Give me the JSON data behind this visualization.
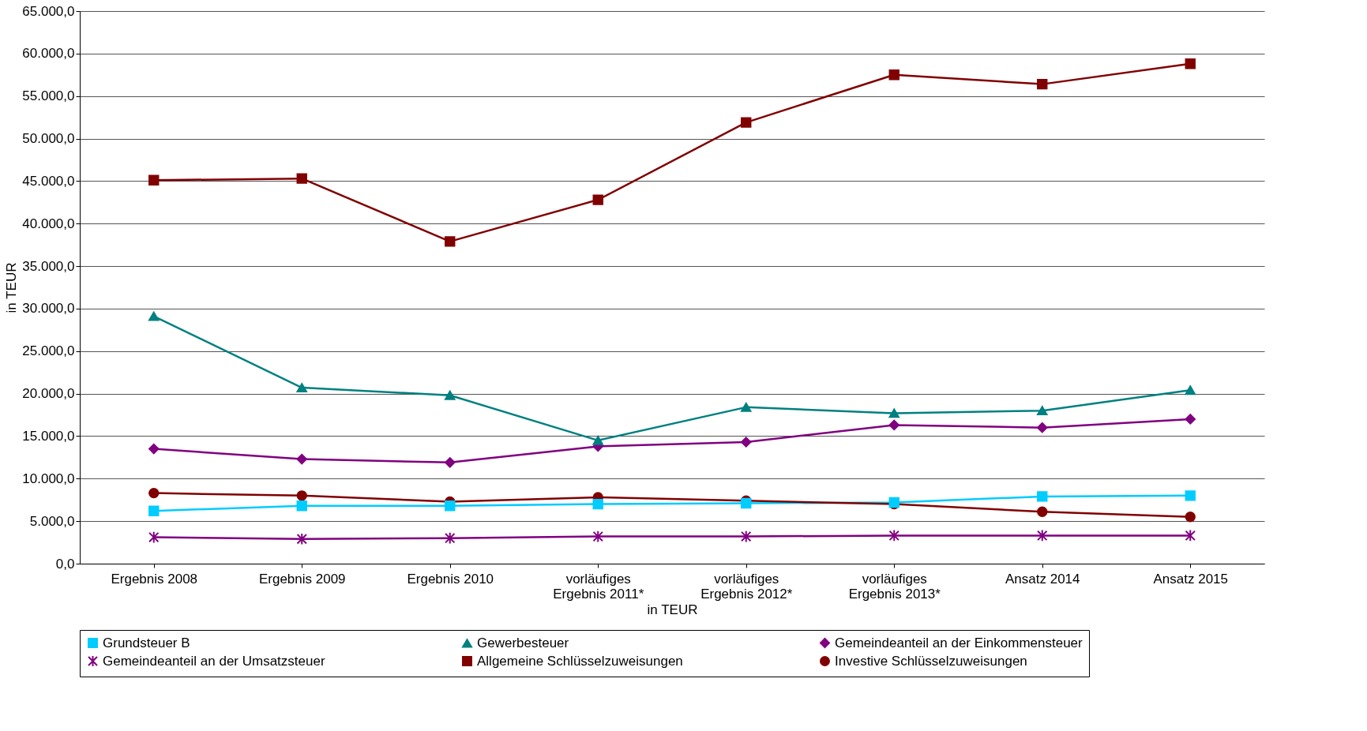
{
  "chart_data": {
    "type": "line",
    "xlabel": "in TEUR",
    "ylabel": "in TEUR",
    "categories": [
      "Ergebnis 2008",
      "Ergebnis 2009",
      "Ergebnis 2010",
      "vorläufiges\nErgebnis 2011*",
      "vorläufiges\nErgebnis 2012*",
      "vorläufiges\nErgebnis 2013*",
      "Ansatz 2014",
      "Ansatz 2015"
    ],
    "series": [
      {
        "name": "Grundsteuer B",
        "color": "#00ccff",
        "marker": "square",
        "values": [
          6200,
          6800,
          6800,
          7000,
          7100,
          7200,
          7900,
          8000
        ]
      },
      {
        "name": "Gewerbesteuer",
        "color": "#008080",
        "marker": "triangle",
        "values": [
          29100,
          20700,
          19800,
          14500,
          18400,
          17700,
          18000,
          20400
        ]
      },
      {
        "name": "Gemeindeanteil an der Einkommensteuer",
        "color": "#800080",
        "marker": "diamond",
        "values": [
          13500,
          12300,
          11900,
          13800,
          14300,
          16300,
          16000,
          17000
        ]
      },
      {
        "name": "Gemeindeanteil an der Umsatzsteuer",
        "color": "#800080",
        "marker": "cross",
        "values": [
          3100,
          2900,
          3000,
          3200,
          3200,
          3300,
          3300,
          3300
        ]
      },
      {
        "name": "Allgemeine Schlüsselzuweisungen",
        "color": "#800000",
        "marker": "square",
        "values": [
          45100,
          45300,
          37900,
          42800,
          51900,
          57500,
          56400,
          58800
        ]
      },
      {
        "name": "Investive Schlüsselzuweisungen",
        "color": "#800000",
        "marker": "circle",
        "values": [
          8300,
          8000,
          7300,
          7800,
          7400,
          7000,
          6100,
          5500
        ]
      }
    ],
    "ylim": [
      0,
      65000
    ],
    "yticks": [
      {
        "value": 0,
        "label": "0,0"
      },
      {
        "value": 5000,
        "label": "5.000,0"
      },
      {
        "value": 10000,
        "label": "10.000,0"
      },
      {
        "value": 15000,
        "label": "15.000,0"
      },
      {
        "value": 20000,
        "label": "20.000,0"
      },
      {
        "value": 25000,
        "label": "25.000,0"
      },
      {
        "value": 30000,
        "label": "30.000,0"
      },
      {
        "value": 35000,
        "label": "35.000,0"
      },
      {
        "value": 40000,
        "label": "40.000,0"
      },
      {
        "value": 45000,
        "label": "45.000,0"
      },
      {
        "value": 50000,
        "label": "50.000,0"
      },
      {
        "value": 55000,
        "label": "55.000,0"
      },
      {
        "value": 60000,
        "label": "60.000,0"
      },
      {
        "value": 65000,
        "label": "65.000,0"
      }
    ],
    "grid": "y",
    "legend": "bottom",
    "line_style": "solid"
  }
}
